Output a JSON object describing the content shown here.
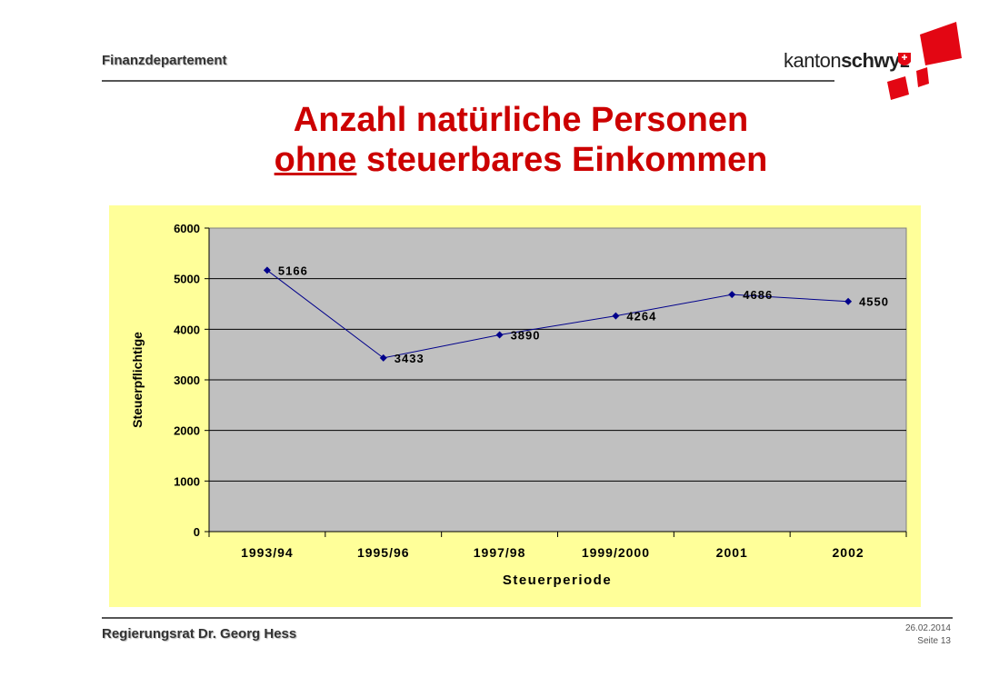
{
  "header": {
    "department": "Finanzdepartement",
    "logo_text_light": "kanton",
    "logo_text_bold": "schwyz"
  },
  "title": {
    "line1": "Anzahl natürliche Personen",
    "line2_underlined": "ohne",
    "line2_rest": " steuerbares Einkommen"
  },
  "colors": {
    "title": "#cc0000",
    "chart_bg": "#ffff99",
    "plot_bg": "#c0c0c0",
    "series": "#00008b",
    "logo_red": "#e30613"
  },
  "chart_data": {
    "type": "line",
    "title": "",
    "categories": [
      "1993/94",
      "1995/96",
      "1997/98",
      "1999/2000",
      "2001",
      "2002"
    ],
    "series": [
      {
        "values": [
          5166,
          3433,
          3890,
          4264,
          4686,
          4550
        ]
      }
    ],
    "data_labels": [
      "5166",
      "3433",
      "3890",
      "4264",
      "4686",
      "4550"
    ],
    "xlabel": "Steuerperiode",
    "ylabel": "Steuerpflichtige",
    "ylim": [
      0,
      6000
    ],
    "yticks": [
      "0",
      "1000",
      "2000",
      "3000",
      "4000",
      "5000",
      "6000"
    ],
    "grid": true,
    "legend": "none"
  },
  "footer": {
    "author": "Regierungsrat Dr. Georg Hess",
    "date": "26.02.2014",
    "page": "Seite 13"
  }
}
